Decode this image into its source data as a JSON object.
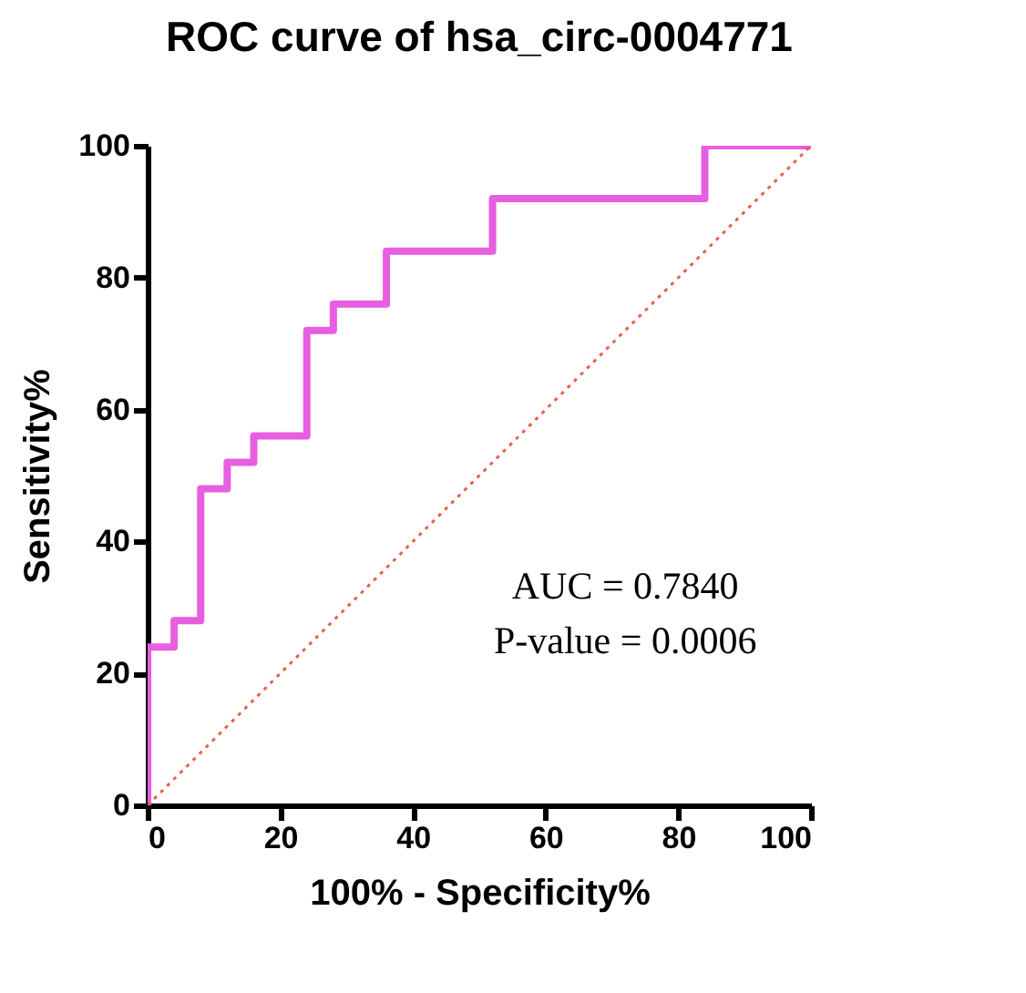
{
  "chart_data": {
    "type": "step",
    "title": "ROC curve of hsa_circ-0004771",
    "xlabel": "100% - Specificity%",
    "ylabel": "Sensitivity%",
    "xlim": [
      0,
      100
    ],
    "ylim": [
      0,
      100
    ],
    "xticks": [
      0,
      20,
      40,
      60,
      80,
      100
    ],
    "yticks": [
      0,
      20,
      40,
      60,
      80,
      100
    ],
    "grid": false,
    "series": [
      {
        "color": "#e85ee0",
        "x": [
          0,
          0,
          4,
          8,
          12,
          16,
          24,
          28,
          36,
          52,
          84,
          100
        ],
        "values": [
          0,
          24,
          28,
          48,
          52,
          56,
          72,
          76,
          84,
          92,
          100,
          100
        ],
        "line_style": "solid"
      },
      {
        "type": "line",
        "color": "#e8604c",
        "x": [
          0,
          100
        ],
        "values": [
          0,
          100
        ],
        "line_style": "dotted"
      }
    ],
    "annotations": [
      "AUC = 0.7840",
      "P-value = 0.0006"
    ]
  }
}
